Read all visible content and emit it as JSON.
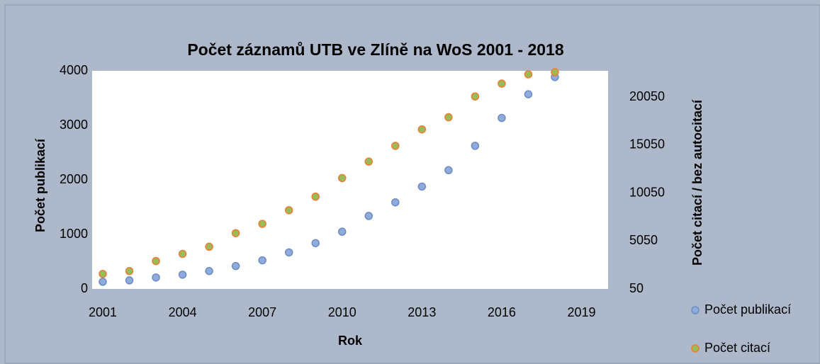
{
  "chart_data": {
    "type": "scatter",
    "title": "Počet záznamů UTB ve Zlíně na WoS 2001 - 2018",
    "x_label": "Rok",
    "y_label": "Počet publikací",
    "y2_label": "Počet citací / bez autocitací",
    "x": [
      2001,
      2002,
      2003,
      2004,
      2005,
      2006,
      2007,
      2008,
      2009,
      2010,
      2011,
      2012,
      2013,
      2014,
      2015,
      2016,
      2017,
      2018
    ],
    "series": [
      {
        "name": "Počet publikací",
        "color": "#8faadc",
        "edgecolor": "#6d8dbf",
        "axis": "y",
        "values": [
          131,
          157,
          210,
          262,
          328,
          420,
          525,
          669,
          840,
          1050,
          1339,
          1588,
          1877,
          2178,
          2625,
          3136,
          3570,
          3885
        ]
      },
      {
        "name": "Počet citací",
        "color": "#9bbb59",
        "edgecolor": "#ed7d31",
        "axis": "y2",
        "values": [
          1617,
          1915,
          2960,
          3707,
          4453,
          5870,
          6840,
          8259,
          9677,
          11617,
          13333,
          14975,
          16691,
          17960,
          20124,
          21467,
          22437,
          22661
        ]
      }
    ],
    "xlim": [
      2000.6,
      2020
    ],
    "xticks": [
      2001,
      2004,
      2007,
      2010,
      2013,
      2016,
      2019
    ],
    "ylim": [
      0,
      4000
    ],
    "yticks": [
      0,
      1000,
      2000,
      3000,
      4000
    ],
    "y2lim": [
      50,
      22800
    ],
    "y2ticks": [
      50,
      5050,
      10050,
      15050,
      20050
    ],
    "legend": "right"
  }
}
